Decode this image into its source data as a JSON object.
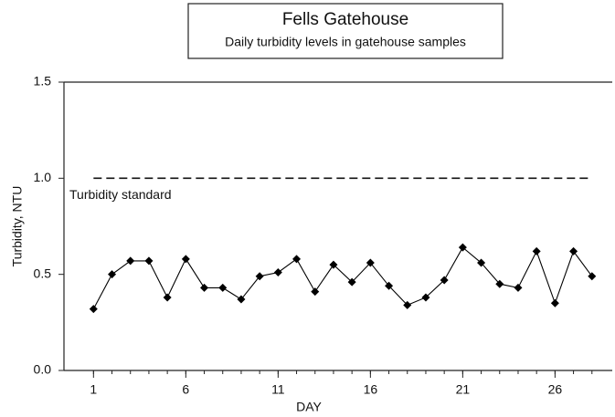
{
  "chart_data": {
    "type": "line",
    "title": "Fells Gatehouse",
    "subtitle": "Daily turbidity levels in gatehouse samples",
    "x_label": "DAY",
    "y_label": "Turbidity, NTU",
    "x": [
      1,
      2,
      3,
      4,
      5,
      6,
      7,
      8,
      9,
      10,
      11,
      12,
      13,
      14,
      15,
      16,
      17,
      18,
      19,
      20,
      21,
      22,
      23,
      24,
      25,
      26,
      27,
      28
    ],
    "series": [
      {
        "color": "#000000",
        "values": [
          0.32,
          0.5,
          0.57,
          0.57,
          0.38,
          0.58,
          0.43,
          0.43,
          0.37,
          0.49,
          0.51,
          0.58,
          0.41,
          0.55,
          0.46,
          0.56,
          0.44,
          0.34,
          0.38,
          0.47,
          0.64,
          0.56,
          0.45,
          0.43,
          0.62,
          0.35,
          0.62,
          0.49
        ]
      }
    ],
    "standard": {
      "label": "Turbidity standard",
      "value": 1.0
    },
    "xlim": [
      -0.6,
      29.1
    ],
    "xticks": [
      1,
      6,
      11,
      16,
      21,
      26
    ],
    "ylim": [
      0,
      1.5
    ],
    "yticks": [
      {
        "value": 0,
        "label": "0.0"
      },
      0.5,
      {
        "value": 1,
        "label": "1.0"
      },
      1.5
    ]
  }
}
